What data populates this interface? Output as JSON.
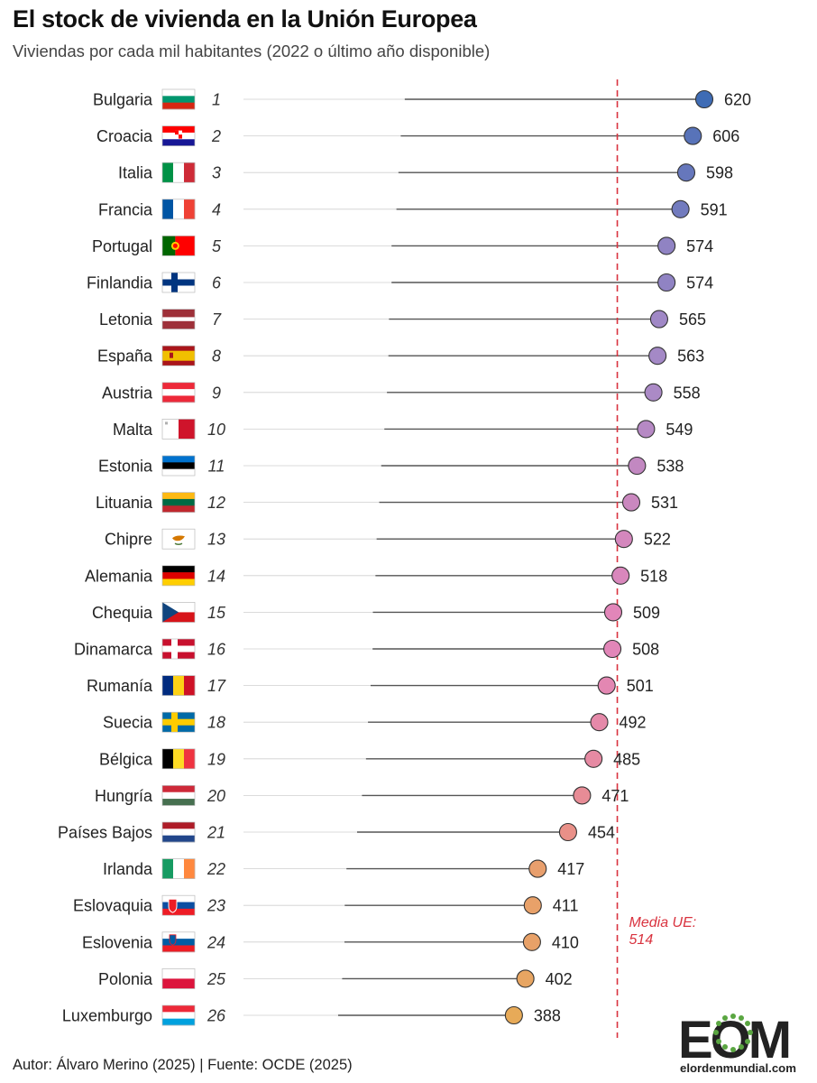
{
  "title": "El stock de vivienda en la Unión Europea",
  "subtitle": "Viviendas por cada mil habitantes (2022 o último año disponible)",
  "footer": "Autor: Álvaro Merino (2025) | Fuente: OCDE (2025)",
  "logo": {
    "letters": "EOM",
    "site": "elordenmundial.com"
  },
  "chart_data": {
    "type": "lollipop",
    "title": "El stock de vivienda en la Unión Europea",
    "subtitle": "Viviendas por cada mil habitantes (2022 o último año disponible)",
    "xlim": [
      0,
      640
    ],
    "mean": {
      "value": 514,
      "label_line1": "Media UE:",
      "label_line2": "514"
    },
    "colors": {
      "high": "#3f6cb5",
      "mid": "#a98ac7",
      "low": "#e7aa58",
      "mean": "#d9333f"
    },
    "rows": [
      {
        "rank": "1",
        "country": "Bulgaria",
        "value": 620,
        "flag": "bulgaria"
      },
      {
        "rank": "2",
        "country": "Croacia",
        "value": 606,
        "flag": "croatia"
      },
      {
        "rank": "3",
        "country": "Italia",
        "value": 598,
        "flag": "italy"
      },
      {
        "rank": "4",
        "country": "Francia",
        "value": 591,
        "flag": "france"
      },
      {
        "rank": "5",
        "country": "Portugal",
        "value": 574,
        "flag": "portugal"
      },
      {
        "rank": "6",
        "country": "Finlandia",
        "value": 574,
        "flag": "finland"
      },
      {
        "rank": "7",
        "country": "Letonia",
        "value": 565,
        "flag": "latvia"
      },
      {
        "rank": "8",
        "country": "España",
        "value": 563,
        "flag": "spain"
      },
      {
        "rank": "9",
        "country": "Austria",
        "value": 558,
        "flag": "austria"
      },
      {
        "rank": "10",
        "country": "Malta",
        "value": 549,
        "flag": "malta"
      },
      {
        "rank": "11",
        "country": "Estonia",
        "value": 538,
        "flag": "estonia"
      },
      {
        "rank": "12",
        "country": "Lituania",
        "value": 531,
        "flag": "lithuania"
      },
      {
        "rank": "13",
        "country": "Chipre",
        "value": 522,
        "flag": "cyprus"
      },
      {
        "rank": "14",
        "country": "Alemania",
        "value": 518,
        "flag": "germany"
      },
      {
        "rank": "15",
        "country": "Chequia",
        "value": 509,
        "flag": "czechia"
      },
      {
        "rank": "16",
        "country": "Dinamarca",
        "value": 508,
        "flag": "denmark"
      },
      {
        "rank": "17",
        "country": "Rumanía",
        "value": 501,
        "flag": "romania"
      },
      {
        "rank": "18",
        "country": "Suecia",
        "value": 492,
        "flag": "sweden"
      },
      {
        "rank": "19",
        "country": "Bélgica",
        "value": 485,
        "flag": "belgium"
      },
      {
        "rank": "20",
        "country": "Hungría",
        "value": 471,
        "flag": "hungary"
      },
      {
        "rank": "21",
        "country": "Países Bajos",
        "value": 454,
        "flag": "netherlands"
      },
      {
        "rank": "22",
        "country": "Irlanda",
        "value": 417,
        "flag": "ireland"
      },
      {
        "rank": "23",
        "country": "Eslovaquia",
        "value": 411,
        "flag": "slovakia"
      },
      {
        "rank": "24",
        "country": "Eslovenia",
        "value": 410,
        "flag": "slovenia"
      },
      {
        "rank": "25",
        "country": "Polonia",
        "value": 402,
        "flag": "poland"
      },
      {
        "rank": "26",
        "country": "Luxemburgo",
        "value": 388,
        "flag": "luxembourg"
      }
    ]
  }
}
